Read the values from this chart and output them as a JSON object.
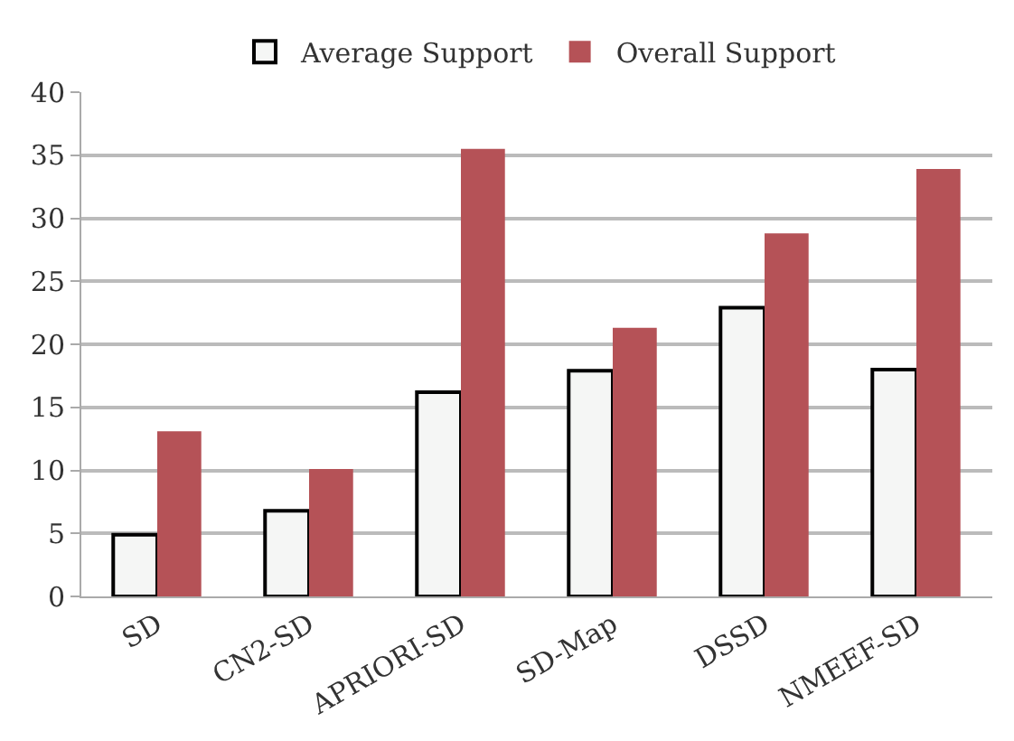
{
  "chart_data": {
    "type": "bar",
    "categories": [
      "SD",
      "CN2-SD",
      "APRIORI-SD",
      "SD-Map",
      "DSSD",
      "NMEEF-SD"
    ],
    "series": [
      {
        "name": "Average Support",
        "color": "#f5f6f5",
        "values": [
          4.9,
          6.8,
          16.2,
          17.9,
          22.9,
          18.0
        ]
      },
      {
        "name": "Overall Support",
        "color": "#b55257",
        "values": [
          13.1,
          10.1,
          35.5,
          21.3,
          28.8,
          33.9
        ]
      }
    ],
    "ylim": [
      0,
      40
    ],
    "yticks": [
      0,
      5,
      10,
      15,
      20,
      25,
      30,
      35,
      40
    ],
    "grid": "y",
    "legend": "top"
  }
}
